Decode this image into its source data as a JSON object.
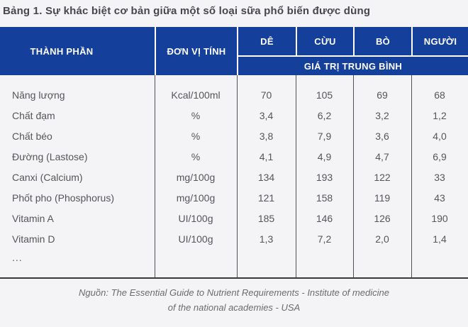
{
  "page": {
    "title": "Bảng 1. Sự khác biệt cơ bản giữa một số loại sữa phổ biến được dùng"
  },
  "table": {
    "columns": {
      "component": "THÀNH PHẦN",
      "unit": "ĐƠN VỊ TÍNH"
    },
    "milk_types": [
      "DÊ",
      "CỪU",
      "BÒ",
      "NGƯỜI"
    ],
    "group_subheader": "GIÁ TRỊ TRUNG BÌNH",
    "rows": [
      {
        "name": "Năng lượng",
        "unit": "Kcal/100ml",
        "values": [
          "70",
          "105",
          "69",
          "68"
        ]
      },
      {
        "name": "Chất đạm",
        "unit": "%",
        "values": [
          "3,4",
          "6,2",
          "3,2",
          "1,2"
        ]
      },
      {
        "name": "Chất béo",
        "unit": "%",
        "values": [
          "3,8",
          "7,9",
          "3,6",
          "4,0"
        ]
      },
      {
        "name": "Đường (Lastose)",
        "unit": "%",
        "values": [
          "4,1",
          "4,9",
          "4,7",
          "6,9"
        ]
      },
      {
        "name": "Canxi (Calcium)",
        "unit": "mg/100g",
        "values": [
          "134",
          "193",
          "122",
          "33"
        ]
      },
      {
        "name": "Phốt pho (Phosphorus)",
        "unit": "mg/100g",
        "values": [
          "121",
          "158",
          "119",
          "43"
        ]
      },
      {
        "name": "Vitamin A",
        "unit": "UI/100g",
        "values": [
          "185",
          "146",
          "126",
          "190"
        ]
      },
      {
        "name": "Vitamin D",
        "unit": "UI/100g",
        "values": [
          "1,3",
          "7,2",
          "2,0",
          "1,4"
        ]
      }
    ],
    "ellipsis": "..."
  },
  "source": {
    "line1": "Nguồn: The Essential Guide to Nutrient Requirements - Institute of medicine",
    "line2": "of the national academies - USA"
  },
  "colors": {
    "header_bg": "#14409C",
    "header_text": "#FFFFFF",
    "page_bg": "#F4F3F5",
    "title_text": "#45484E",
    "body_text": "#55565A",
    "divider": "#505155",
    "footer_text": "#6B6B6D"
  }
}
